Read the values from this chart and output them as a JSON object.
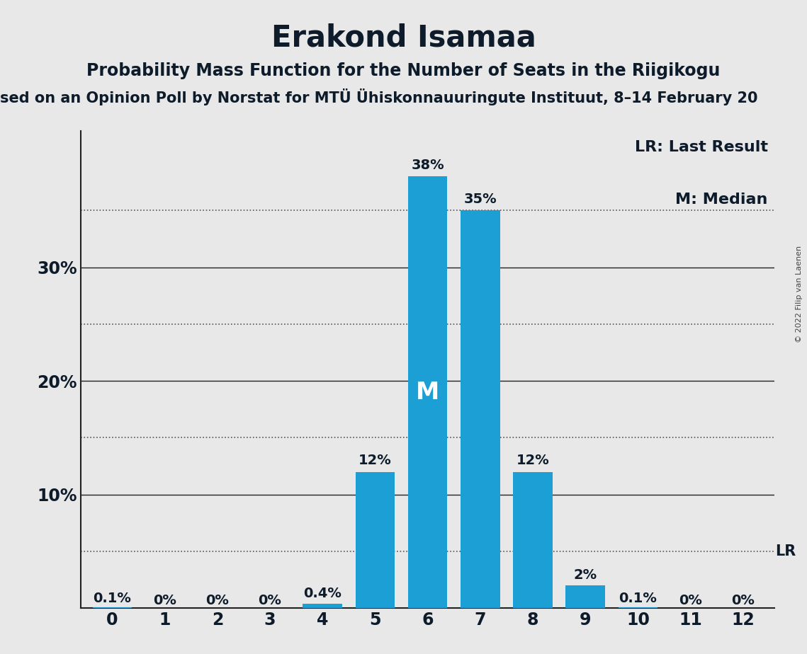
{
  "title": "Erakond Isamaa",
  "subtitle": "Probability Mass Function for the Number of Seats in the Riigikogu",
  "subtitle2": "sed on an Opinion Poll by Norstat for MTÜ Ühiskonnauuringute Instituut, 8–14 February 20",
  "copyright": "© 2022 Filip van Laenen",
  "categories": [
    0,
    1,
    2,
    3,
    4,
    5,
    6,
    7,
    8,
    9,
    10,
    11,
    12
  ],
  "values": [
    0.001,
    0.0,
    0.0,
    0.0,
    0.004,
    0.12,
    0.38,
    0.35,
    0.12,
    0.02,
    0.001,
    0.0,
    0.0
  ],
  "labels": [
    "0.1%",
    "0%",
    "0%",
    "0%",
    "0.4%",
    "12%",
    "38%",
    "35%",
    "12%",
    "2%",
    "0.1%",
    "0%",
    "0%"
  ],
  "bar_color": "#1b9fd5",
  "background_color": "#e8e8e8",
  "lr_value": 0.05,
  "lr_label": "LR",
  "median_bar": 6,
  "median_label": "M",
  "legend_lr": "LR: Last Result",
  "legend_m": "M: Median",
  "ylim": [
    0,
    0.42
  ],
  "yticks": [
    0.1,
    0.2,
    0.3
  ],
  "ytick_labels": [
    "10%",
    "20%",
    "30%"
  ],
  "dotted_lines": [
    0.05,
    0.15,
    0.25,
    0.35
  ],
  "solid_lines": [
    0.1,
    0.2,
    0.3
  ],
  "bar_width": 0.75,
  "title_fontsize": 30,
  "subtitle_fontsize": 17,
  "subtitle2_fontsize": 15,
  "bar_label_fontsize": 14,
  "ytick_fontsize": 17,
  "xtick_fontsize": 17,
  "median_label_fontsize": 24,
  "lr_label_fontsize": 15,
  "legend_fontsize": 16,
  "text_color": "#0d1b2a"
}
